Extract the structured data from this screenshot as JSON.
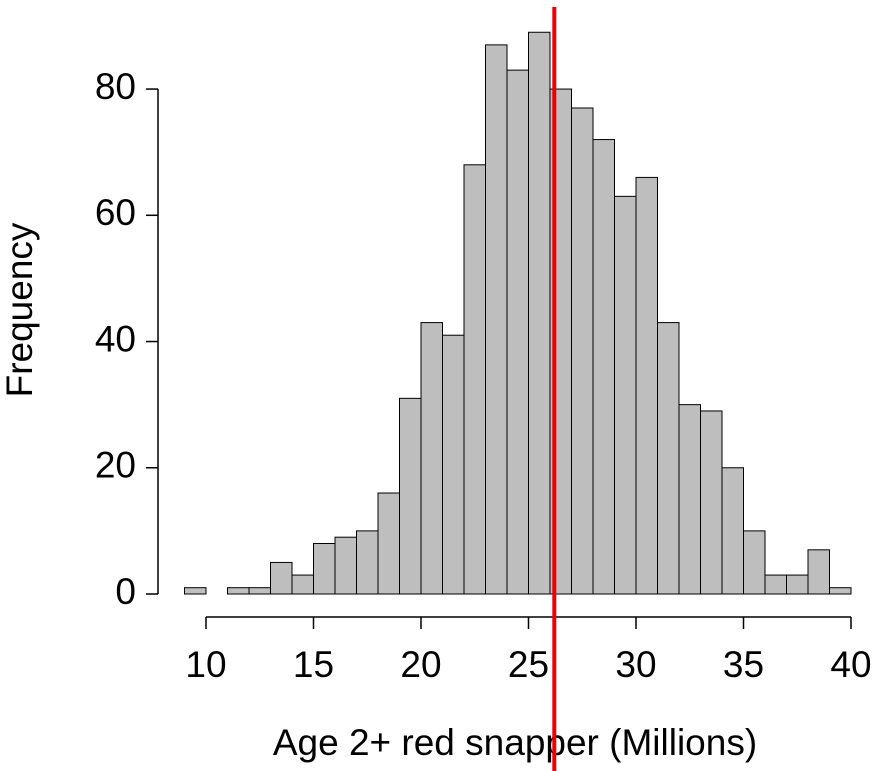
{
  "chart_data": {
    "type": "histogram",
    "xlabel": "Age 2+ red snapper (Millions)",
    "ylabel": "Frequency",
    "bins": [
      9,
      10,
      11,
      12,
      13,
      14,
      15,
      16,
      17,
      18,
      19,
      20,
      21,
      22,
      23,
      24,
      25,
      26,
      27,
      28,
      29,
      30,
      31,
      32,
      33,
      34,
      35,
      36,
      37,
      38,
      39,
      40
    ],
    "counts": [
      1,
      0,
      1,
      1,
      5,
      3,
      8,
      9,
      10,
      16,
      31,
      43,
      41,
      68,
      87,
      83,
      89,
      80,
      77,
      72,
      63,
      66,
      43,
      30,
      29,
      20,
      10,
      3,
      3,
      7,
      1
    ],
    "color": "#bebebe",
    "vline": 26.2,
    "vline_color": "#ee0000",
    "xlim": [
      9,
      40
    ],
    "ylim": [
      0,
      93
    ],
    "xticks": [
      10,
      15,
      20,
      25,
      30,
      35,
      40
    ],
    "yticks": [
      0,
      20,
      40,
      60,
      80
    ]
  }
}
